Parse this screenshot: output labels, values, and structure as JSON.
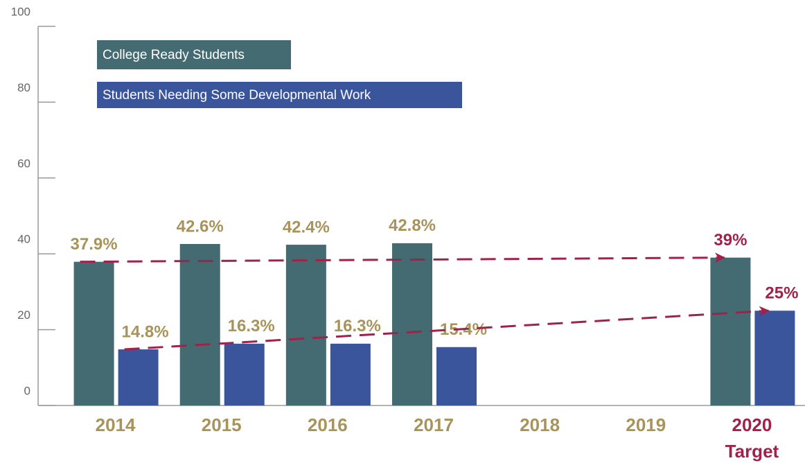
{
  "chart_data": {
    "type": "bar",
    "categories": [
      "2014",
      "2015",
      "2016",
      "2017",
      "2018",
      "2019",
      "2020 Target"
    ],
    "series": [
      {
        "name": "College Ready Students",
        "color": "#456b72",
        "values": [
          37.9,
          42.6,
          42.4,
          42.8,
          null,
          null,
          39
        ],
        "value_labels": [
          "37.9%",
          "42.6%",
          "42.4%",
          "42.8%",
          null,
          null,
          "39%"
        ]
      },
      {
        "name": "Students Needing Some Developmental Work",
        "color": "#3b559c",
        "values": [
          14.8,
          16.3,
          16.3,
          15.4,
          null,
          null,
          25
        ],
        "value_labels": [
          "14.8%",
          "16.3%",
          "16.3%",
          "15.4%",
          null,
          null,
          "25%"
        ]
      }
    ],
    "ylim": [
      0,
      100
    ],
    "yticks": [
      0,
      20,
      40,
      60,
      80,
      100
    ],
    "label_color": "#a8935a",
    "target_color": "#a0224a",
    "legend": "upper left"
  }
}
